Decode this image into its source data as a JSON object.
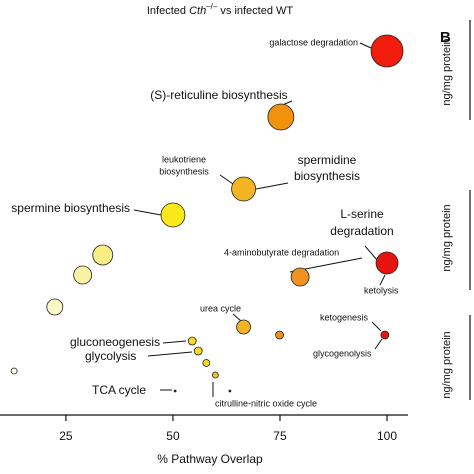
{
  "chart_data": {
    "type": "scatter",
    "title": {
      "prefix": "Infected ",
      "gene": "Cth",
      "superscript": "–/–",
      "suffix": " vs infected WT"
    },
    "x_label": "% Pathway Overlap",
    "xlim": [
      9.6,
      104.9
    ],
    "xticks": [
      25,
      50,
      75,
      100
    ],
    "ylim": [
      0,
      10
    ],
    "points": {
      "x": [
        100,
        75.2,
        66.5,
        50,
        100,
        79.7,
        33.6,
        28.9,
        22.4,
        66.5,
        74.9,
        99.5,
        54.5,
        55.9,
        57.8,
        59.9,
        50.5,
        63.3,
        12.9
      ],
      "y": [
        9.1,
        7.45,
        5.65,
        5.0,
        3.8,
        3.45,
        4.0,
        3.5,
        2.7,
        2.2,
        2.0,
        2.0,
        1.85,
        1.6,
        1.3,
        1.0,
        0.6,
        0.6,
        1.1
      ],
      "sizes": [
        16,
        13,
        12,
        12,
        11,
        9,
        10,
        9,
        8,
        7,
        4,
        4,
        4,
        4,
        3.5,
        3,
        1,
        1,
        3
      ],
      "colors": [
        "#f21c0c",
        "#f0920c",
        "#f2b422",
        "#f9e81a",
        "#e8120e",
        "#f09222",
        "#f8ee84",
        "#f9f1a2",
        "#fbf9c6",
        "#f2b422",
        "#f09022",
        "#e2140e",
        "#f8d824",
        "#f8d824",
        "#f8d824",
        "#f2c424",
        "#333333",
        "#333333",
        "#fffff0"
      ]
    },
    "annotations": [
      "galactose degradation",
      "(S)-reticuline biosynthesis",
      "leukotriene",
      "biosynthesis",
      "spermidine",
      "biosynthesis",
      "spermine biosynthesis",
      "L-serine",
      "degradation",
      "4-aminobutyrate degradation",
      "ketolysis",
      "urea cycle",
      "ketogenesis",
      "glycogenolysis",
      "gluconeogenesis",
      "glycolysis",
      "TCA cycle",
      "citrulline-nitric oxide cycle"
    ],
    "panel_b": {
      "letter": "B",
      "y_labels": [
        "ng/mg protein",
        "ng/mg protein",
        "ng/mg protein"
      ]
    }
  }
}
